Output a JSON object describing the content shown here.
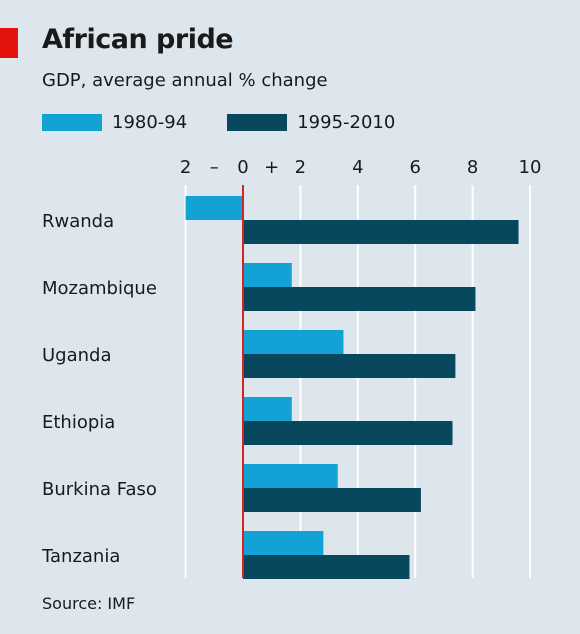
{
  "title": "African pride",
  "subtitle": "GDP, average annual % change",
  "source": "Source: IMF",
  "colors": {
    "series1": "#13a2d6",
    "series2": "#08485e",
    "zero_line": "#d0262a",
    "grid": "#ffffff",
    "background": "#dde6ec",
    "accent": "#e3120b"
  },
  "chart_data": {
    "type": "bar",
    "orientation": "horizontal",
    "title": "African pride",
    "subtitle": "GDP, average annual % change",
    "categories": [
      "Rwanda",
      "Mozambique",
      "Uganda",
      "Ethiopia",
      "Burkina Faso",
      "Tanzania"
    ],
    "series": [
      {
        "name": "1980-94",
        "values": [
          -2.0,
          1.7,
          3.5,
          1.7,
          3.3,
          2.8
        ]
      },
      {
        "name": "1995-2010",
        "values": [
          9.6,
          8.1,
          7.4,
          7.3,
          6.2,
          5.8
        ]
      }
    ],
    "xlim": [
      -2,
      10
    ],
    "xticks": [
      -2,
      0,
      2,
      4,
      6,
      8,
      10
    ],
    "xtick_labels": [
      "2",
      "0",
      "2",
      "4",
      "6",
      "8",
      "10"
    ],
    "sign_labels": {
      "minus": "–",
      "plus": "+"
    },
    "grid": true,
    "legend_position": "top-left",
    "source": "Source: IMF"
  }
}
